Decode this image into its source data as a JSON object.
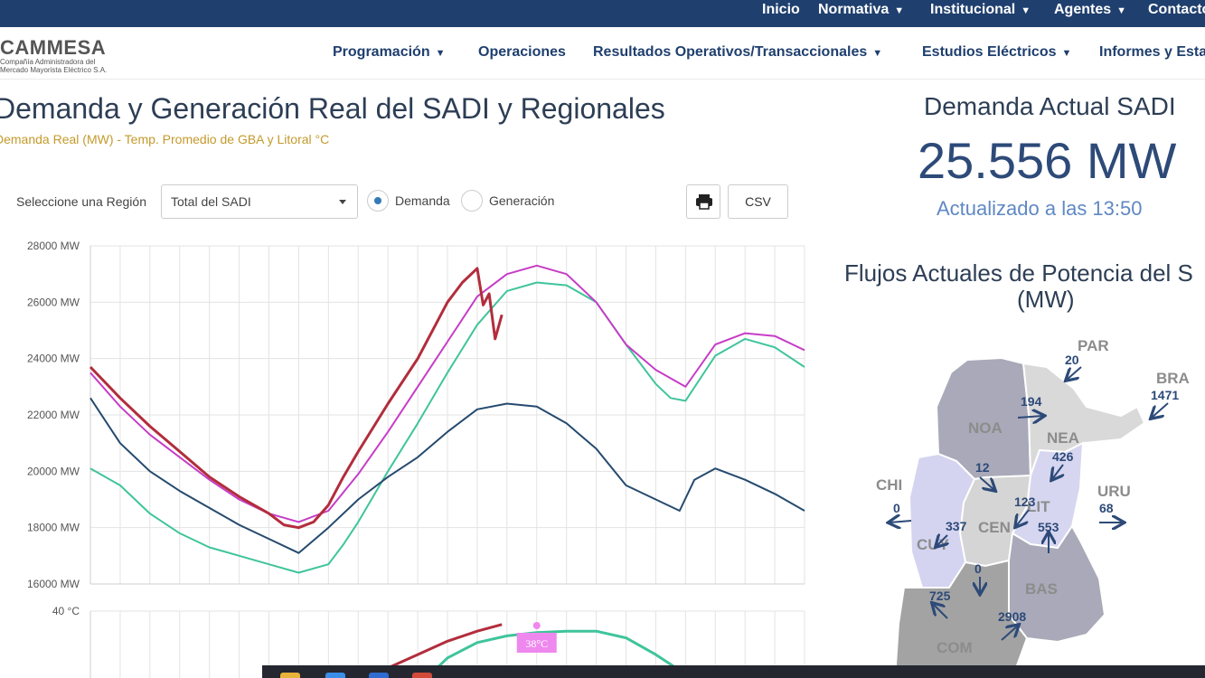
{
  "top_nav": [
    {
      "label": "Inicio",
      "dropdown": false
    },
    {
      "label": "Normativa",
      "dropdown": true
    },
    {
      "label": "Institucional",
      "dropdown": true
    },
    {
      "label": "Agentes",
      "dropdown": true
    },
    {
      "label": "Contacto",
      "dropdown": false
    }
  ],
  "logo": {
    "name": "CAMMESA",
    "subtitle_line1": "Compañía Administradora del",
    "subtitle_line2": "Mercado Mayorista Eléctrico S.A."
  },
  "main_nav": [
    {
      "label": "Programación",
      "dropdown": true
    },
    {
      "label": "Operaciones",
      "dropdown": false
    },
    {
      "label": "Resultados Operativos/Transaccionales",
      "dropdown": true
    },
    {
      "label": "Estudios Eléctricos",
      "dropdown": true
    },
    {
      "label": "Informes y Esta",
      "dropdown": false
    }
  ],
  "page": {
    "title": "Demanda y Generación Real del SADI y Regionales",
    "subtitle": "Demanda Real (MW) - Temp. Promedio de GBA y Litoral °C"
  },
  "controls": {
    "region_label": "Seleccione una Región",
    "region_value": "Total del SADI",
    "radio_demanda": "Demanda",
    "radio_generacion": "Generación",
    "selected_mode": "Demanda",
    "csv_label": "CSV",
    "print_icon": "printer-icon"
  },
  "demand": {
    "label": "Demanda Actual SADI",
    "value": "25.556 MW",
    "updated": "Actualizado a las 13:50"
  },
  "flows": {
    "title_line1": "Flujos Actuales de Potencia del S",
    "title_line2": "(MW)",
    "regions": [
      "NOA",
      "NEA",
      "CHI",
      "CUY",
      "CEN",
      "LIT",
      "URU",
      "BAS",
      "COM",
      "PAR",
      "BRA"
    ],
    "values": [
      {
        "label": "PAR",
        "value": "20"
      },
      {
        "label": "BRA",
        "value": "1471"
      },
      {
        "label": "NOA-NEA",
        "value": "194"
      },
      {
        "label": "NEA-LIT",
        "value": "426"
      },
      {
        "label": "NOA-CEN",
        "value": "12"
      },
      {
        "label": "CEN-LIT",
        "value": "123"
      },
      {
        "label": "CHI",
        "value": "0"
      },
      {
        "label": "CUY-CEN",
        "value": "337"
      },
      {
        "label": "LIT-BAS",
        "value": "553"
      },
      {
        "label": "URU",
        "value": "68"
      },
      {
        "label": "CEN-COM",
        "value": "0"
      },
      {
        "label": "CUY-COM",
        "value": "725"
      },
      {
        "label": "COM-BAS",
        "value": "2908"
      }
    ]
  },
  "chart_data": [
    {
      "type": "line",
      "y_tick_labels": [
        "28000 MW",
        "26000 MW",
        "24000 MW",
        "22000 MW",
        "20000 MW",
        "18000 MW",
        "16000 MW"
      ],
      "ylim": [
        16000,
        28000
      ],
      "x_hours": [
        0,
        24
      ],
      "grid": true,
      "series": [
        {
          "color": "#b22d3c",
          "x": [
            0,
            1,
            2,
            3,
            4,
            5,
            6,
            6.5,
            7,
            7.5,
            8,
            8.5,
            9,
            10,
            11,
            12,
            12.5,
            13,
            13.2,
            13.4,
            13.6,
            13.83
          ],
          "y": [
            23700,
            22600,
            21600,
            20700,
            19800,
            19100,
            18500,
            18100,
            18000,
            18200,
            18800,
            19800,
            20700,
            22400,
            24000,
            26000,
            26700,
            27200,
            25900,
            26300,
            24700,
            25556
          ]
        },
        {
          "color": "#c63dc6",
          "x": [
            0,
            1,
            2,
            3,
            4,
            5,
            6,
            7,
            8,
            9,
            10,
            11,
            12,
            13,
            14,
            15,
            16,
            17,
            18,
            19,
            20,
            21,
            22,
            23,
            24
          ],
          "y": [
            23500,
            22300,
            21300,
            20500,
            19700,
            19000,
            18500,
            18200,
            18600,
            19900,
            21400,
            23000,
            24600,
            26200,
            27000,
            27300,
            27000,
            26000,
            24500,
            23600,
            23000,
            24500,
            24900,
            24800,
            24300
          ]
        },
        {
          "color": "#3fc49b",
          "x": [
            0,
            1,
            2,
            3,
            4,
            5,
            6,
            7,
            8,
            8.5,
            9,
            10,
            11,
            12,
            13,
            14,
            15,
            16,
            17,
            18,
            19,
            19.5,
            20,
            21,
            22,
            23,
            24
          ],
          "y": [
            20100,
            19500,
            18500,
            17800,
            17300,
            17000,
            16700,
            16400,
            16700,
            17400,
            18200,
            20000,
            21700,
            23500,
            25200,
            26400,
            26700,
            26600,
            26000,
            24500,
            23100,
            22600,
            22500,
            24100,
            24700,
            24400,
            23700
          ]
        },
        {
          "color": "#254a6e",
          "x": [
            0,
            1,
            2,
            3,
            4,
            5,
            6,
            7,
            8,
            9,
            10,
            11,
            12,
            13,
            14,
            15,
            16,
            17,
            18,
            19,
            19.8,
            20.3,
            21,
            22,
            23,
            24
          ],
          "y": [
            22600,
            21000,
            20000,
            19300,
            18700,
            18100,
            17600,
            17100,
            18000,
            19000,
            19800,
            20500,
            21400,
            22200,
            22400,
            22300,
            21700,
            20800,
            19500,
            19000,
            18600,
            19700,
            20100,
            19700,
            19200,
            18600
          ]
        }
      ]
    },
    {
      "type": "line",
      "y_tick_labels": [
        "40 °C"
      ],
      "ylim": [
        30,
        40
      ],
      "x_hours": [
        0,
        24
      ],
      "annotation": "38°C",
      "series": [
        {
          "color": "#b22d3c",
          "x": [
            9.3,
            10,
            11,
            12,
            13,
            13.83
          ],
          "y": [
            30,
            31.5,
            33.5,
            35.5,
            37,
            38
          ]
        },
        {
          "color": "#3fc49b",
          "x": [
            11.3,
            12,
            13,
            14,
            15,
            16,
            17,
            18,
            19,
            20.2
          ],
          "y": [
            30,
            33,
            35.3,
            36.3,
            36.8,
            37,
            37,
            36,
            33.5,
            30
          ]
        }
      ]
    }
  ]
}
